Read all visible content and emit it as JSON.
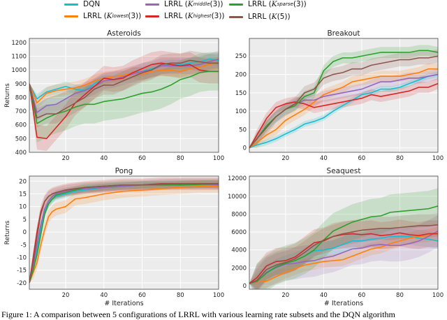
{
  "legend": [
    {
      "prefix": "DQN",
      "k": "",
      "sub": "",
      "suffix": "",
      "color": "#17becf"
    },
    {
      "prefix": "LRRL (",
      "k": "K",
      "sub": "lowest",
      "suffix": "(3))",
      "color": "#ff7f0e"
    },
    {
      "prefix": "LRRL (",
      "k": "K",
      "sub": "middle",
      "suffix": "(3))",
      "color": "#9467bd"
    },
    {
      "prefix": "LRRL (",
      "k": "K",
      "sub": "highest",
      "suffix": "(3))",
      "color": "#d62728"
    },
    {
      "prefix": "LRRL (",
      "k": "K",
      "sub": "sparse",
      "suffix": "(3))",
      "color": "#2ca02c"
    },
    {
      "prefix": "LRRL (",
      "k": "K",
      "sub": "",
      "suffix": "(5))",
      "color": "#8c564b"
    }
  ],
  "caption": "Figure 1: A comparison between 5 configurations of LRRL with various learning rate subsets and the DQN algorithm",
  "chart_data": [
    {
      "type": "line",
      "title": "Asteroids",
      "xlabel": "",
      "ylabel": "Returns",
      "xlim": [
        1,
        100
      ],
      "ylim": [
        400,
        1230
      ],
      "grid": true,
      "xticks": [
        20,
        40,
        60,
        80,
        100
      ],
      "yticks": [
        400,
        500,
        600,
        700,
        800,
        900,
        1000,
        1100,
        1200
      ],
      "x": [
        1,
        5,
        10,
        15,
        20,
        25,
        30,
        35,
        40,
        45,
        50,
        55,
        60,
        65,
        70,
        75,
        80,
        85,
        90,
        95,
        100
      ],
      "series": [
        {
          "name": "DQN",
          "band": 35,
          "values": [
            900,
            790,
            840,
            860,
            880,
            860,
            850,
            900,
            940,
            950,
            960,
            980,
            990,
            1010,
            1030,
            1040,
            1040,
            1050,
            1060,
            1080,
            1070
          ]
        },
        {
          "name": "LRRL (K lowest(3))",
          "band": 45,
          "values": [
            900,
            760,
            830,
            850,
            860,
            870,
            890,
            920,
            940,
            950,
            960,
            980,
            970,
            990,
            1000,
            1000,
            990,
            1010,
            1020,
            1040,
            1050
          ]
        },
        {
          "name": "LRRL (K middle(3))",
          "band": 60,
          "values": [
            900,
            690,
            740,
            750,
            790,
            830,
            850,
            880,
            920,
            930,
            950,
            970,
            990,
            1000,
            1030,
            1030,
            1030,
            1030,
            1040,
            1060,
            1080
          ]
        },
        {
          "name": "LRRL (K highest(3))",
          "band": 90,
          "values": [
            900,
            510,
            500,
            580,
            660,
            760,
            820,
            880,
            940,
            930,
            940,
            980,
            1010,
            1040,
            1050,
            1040,
            1030,
            1040,
            1000,
            990,
            990
          ]
        },
        {
          "name": "LRRL (K sparse(3))",
          "band": 140,
          "values": [
            900,
            610,
            650,
            680,
            700,
            730,
            750,
            750,
            770,
            780,
            790,
            810,
            830,
            840,
            860,
            890,
            930,
            950,
            980,
            990,
            990
          ]
        },
        {
          "name": "LRRL (K(5))",
          "band": 70,
          "values": [
            900,
            650,
            680,
            680,
            720,
            760,
            800,
            860,
            890,
            890,
            920,
            950,
            980,
            1000,
            1040,
            1050,
            1050,
            1070,
            1060,
            1050,
            1050
          ]
        }
      ]
    },
    {
      "type": "line",
      "title": "Breakout",
      "xlabel": "",
      "ylabel": "",
      "xlim": [
        1,
        100
      ],
      "ylim": [
        -12,
        298
      ],
      "grid": true,
      "xticks": [
        20,
        40,
        60,
        80,
        100
      ],
      "yticks": [
        0,
        50,
        100,
        150,
        200,
        250
      ],
      "x": [
        1,
        5,
        10,
        15,
        20,
        25,
        30,
        35,
        40,
        45,
        50,
        55,
        60,
        65,
        70,
        75,
        80,
        85,
        90,
        95,
        100
      ],
      "series": [
        {
          "name": "DQN",
          "band": 8,
          "values": [
            0,
            8,
            15,
            25,
            38,
            50,
            65,
            72,
            82,
            100,
            115,
            130,
            145,
            150,
            160,
            160,
            165,
            175,
            185,
            195,
            200
          ]
        },
        {
          "name": "LRRL (K lowest(3))",
          "band": 15,
          "values": [
            0,
            15,
            35,
            50,
            75,
            90,
            105,
            125,
            145,
            155,
            165,
            180,
            185,
            190,
            195,
            195,
            195,
            200,
            205,
            215,
            215
          ]
        },
        {
          "name": "LRRL (K middle(3))",
          "band": 15,
          "values": [
            0,
            25,
            60,
            85,
            105,
            120,
            130,
            130,
            140,
            145,
            150,
            155,
            160,
            170,
            180,
            180,
            185,
            190,
            190,
            195,
            200
          ]
        },
        {
          "name": "LRRL (K highest(3))",
          "band": 15,
          "values": [
            0,
            35,
            80,
            110,
            120,
            125,
            120,
            110,
            115,
            120,
            125,
            130,
            135,
            145,
            140,
            145,
            150,
            155,
            165,
            165,
            175
          ]
        },
        {
          "name": "LRRL (K sparse(3))",
          "band": 15,
          "values": [
            0,
            25,
            60,
            85,
            105,
            115,
            140,
            150,
            210,
            235,
            245,
            245,
            250,
            255,
            260,
            260,
            260,
            260,
            265,
            265,
            260
          ]
        },
        {
          "name": "LRRL (K(5))",
          "band": 18,
          "values": [
            0,
            25,
            55,
            85,
            105,
            120,
            150,
            160,
            190,
            200,
            205,
            215,
            215,
            225,
            230,
            235,
            240,
            240,
            245,
            245,
            250
          ]
        }
      ]
    },
    {
      "type": "line",
      "title": "Pong",
      "xlabel": "# Iterations",
      "ylabel": "Returns",
      "xlim": [
        1,
        100
      ],
      "ylim": [
        -22.5,
        22
      ],
      "grid": true,
      "xticks": [
        20,
        40,
        60,
        80,
        100
      ],
      "yticks": [
        -20,
        -15,
        -10,
        -5,
        0,
        5,
        10,
        15,
        20
      ],
      "x": [
        1,
        3,
        5,
        7,
        9,
        11,
        13,
        15,
        20,
        25,
        30,
        40,
        50,
        60,
        70,
        80,
        90,
        100
      ],
      "series": [
        {
          "name": "DQN",
          "band": 1.5,
          "values": [
            -20,
            -14,
            -7,
            1,
            8,
            11,
            13,
            14,
            15,
            16,
            16.5,
            17.5,
            18,
            18.5,
            19,
            19,
            19,
            19
          ]
        },
        {
          "name": "LRRL (K lowest(3))",
          "band": 2.5,
          "values": [
            -20,
            -16,
            -12,
            -5,
            1,
            6,
            8,
            9,
            10,
            13,
            13.5,
            15,
            16,
            16.5,
            17,
            17.5,
            18,
            18
          ]
        },
        {
          "name": "LRRL (K middle(3))",
          "band": 1.5,
          "values": [
            -20,
            -14,
            -5,
            3,
            9,
            12,
            14,
            15,
            16,
            16.5,
            17,
            17.5,
            18,
            18.5,
            18.5,
            18.8,
            18.8,
            18.5
          ]
        },
        {
          "name": "LRRL (K highest(3))",
          "band": 2.5,
          "values": [
            -20,
            -10,
            0,
            8,
            12,
            14,
            15,
            15.5,
            16.5,
            17,
            17.5,
            18,
            18.5,
            18.5,
            19,
            19,
            19,
            19
          ]
        },
        {
          "name": "LRRL (K sparse(3))",
          "band": 1.5,
          "values": [
            -20,
            -15,
            -9,
            -1,
            7,
            11,
            13,
            14.5,
            15.5,
            16.5,
            17.5,
            18,
            18.5,
            18.5,
            18.5,
            18.5,
            18.7,
            19
          ]
        },
        {
          "name": "LRRL (K(5))",
          "band": 2,
          "values": [
            -20,
            -12,
            -2,
            7,
            12,
            14,
            15,
            15.5,
            16.5,
            17,
            17.5,
            18,
            18.5,
            18.5,
            18.8,
            19,
            19,
            19
          ]
        }
      ]
    },
    {
      "type": "line",
      "title": "Seaquest",
      "xlabel": "# Iterations",
      "ylabel": "",
      "xlim": [
        1,
        100
      ],
      "ylim": [
        -400,
        12250
      ],
      "grid": true,
      "xticks": [
        20,
        40,
        60,
        80,
        100
      ],
      "yticks": [
        0,
        2000,
        4000,
        6000,
        8000,
        10000,
        12000
      ],
      "x": [
        1,
        5,
        10,
        15,
        20,
        25,
        30,
        35,
        40,
        45,
        50,
        55,
        60,
        65,
        70,
        75,
        80,
        85,
        90,
        95,
        100
      ],
      "series": [
        {
          "name": "DQN",
          "band": 900,
          "values": [
            250,
            500,
            1500,
            2100,
            2500,
            2800,
            3300,
            3900,
            4000,
            4200,
            4600,
            5000,
            5000,
            5200,
            5300,
            5500,
            5500,
            5500,
            5300,
            5200,
            5000
          ]
        },
        {
          "name": "LRRL (K lowest(3))",
          "band": 700,
          "values": [
            250,
            400,
            500,
            1000,
            1500,
            1900,
            2300,
            2500,
            2700,
            2800,
            2900,
            3300,
            3700,
            4100,
            4300,
            4700,
            5000,
            5300,
            5500,
            5600,
            5900
          ]
        },
        {
          "name": "LRRL (K middle(3))",
          "band": 1800,
          "values": [
            250,
            450,
            1500,
            2000,
            2400,
            2500,
            2700,
            2800,
            3100,
            3300,
            3700,
            4100,
            4200,
            4500,
            4600,
            4500,
            4500,
            4700,
            5000,
            5500,
            6100
          ]
        },
        {
          "name": "LRRL (K highest(3))",
          "band": 1500,
          "values": [
            250,
            900,
            2200,
            2700,
            2800,
            3200,
            4000,
            4800,
            5000,
            5500,
            5700,
            5800,
            5700,
            5800,
            5600,
            5700,
            5900,
            5700,
            5600,
            5800,
            5800
          ]
        },
        {
          "name": "LRRL (K sparse(3))",
          "band": 2000,
          "values": [
            250,
            500,
            1400,
            2100,
            2500,
            2800,
            3300,
            4000,
            5100,
            6100,
            6600,
            7100,
            7400,
            7700,
            7800,
            8200,
            8300,
            8400,
            8500,
            8600,
            8900
          ]
        },
        {
          "name": "LRRL (K(5))",
          "band": 1300,
          "values": [
            250,
            600,
            1800,
            2300,
            2600,
            3000,
            3700,
            4500,
            5100,
            5500,
            5800,
            6000,
            6200,
            6300,
            6400,
            6400,
            6500,
            6600,
            6700,
            6700,
            6800
          ]
        }
      ]
    }
  ]
}
